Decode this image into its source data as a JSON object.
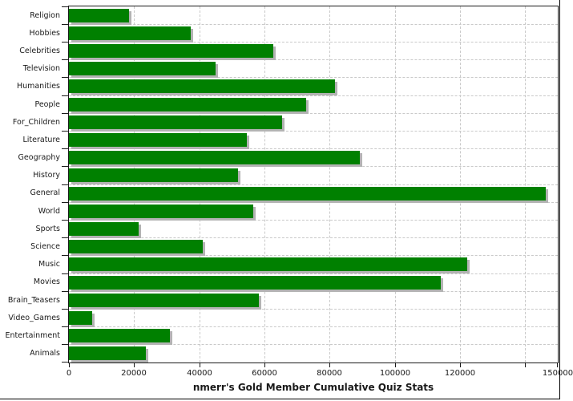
{
  "chart_data": {
    "type": "bar",
    "orientation": "horizontal",
    "title": "nmerr's Gold Member Cumulative Quiz Stats",
    "categories": [
      "Religion",
      "Hobbies",
      "Celebrities",
      "Television",
      "Humanities",
      "People",
      "For_Children",
      "Literature",
      "Geography",
      "History",
      "General",
      "World",
      "Sports",
      "Science",
      "Music",
      "Movies",
      "Brain_Teasers",
      "Video_Games",
      "Entertainment",
      "Animals"
    ],
    "values": [
      18500,
      37400,
      62700,
      44900,
      81600,
      72900,
      65300,
      54500,
      89200,
      52000,
      146300,
      56600,
      21300,
      41000,
      122100,
      114100,
      58300,
      7200,
      30900,
      23600
    ],
    "xlim": [
      0,
      150000
    ],
    "x_ticks": [
      {
        "value": 0,
        "label": "0"
      },
      {
        "value": 20000,
        "label": "20000"
      },
      {
        "value": 40000,
        "label": "40000"
      },
      {
        "value": 60000,
        "label": "60000"
      },
      {
        "value": 80000,
        "label": "80000"
      },
      {
        "value": 100000,
        "label": "100000"
      },
      {
        "value": 120000,
        "label": "120000"
      },
      {
        "value": 140000,
        "label": ""
      },
      {
        "value": 150000,
        "label": "150000"
      }
    ],
    "xlabel": "",
    "ylabel": "",
    "legend": "none",
    "grid": "dashed-both-axes",
    "bar_color": "#008000",
    "shadow_color": "#b3b3b3",
    "grid_color": "#c9c9c9",
    "axis_color": "#1a1a1a",
    "background_color": "#ffffff"
  }
}
